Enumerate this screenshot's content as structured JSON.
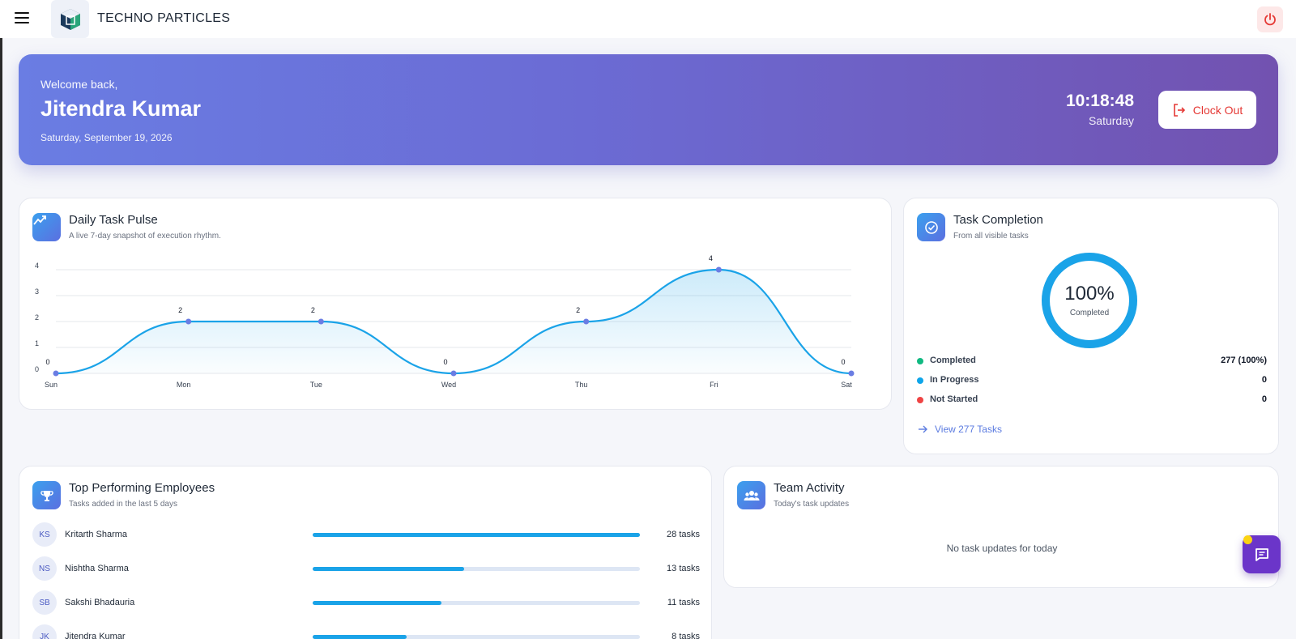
{
  "header": {
    "brand": "TECHNO PARTICLES",
    "menu_icon": "hamburger-icon",
    "logo_icon": "cube-logo",
    "power_icon": "power-icon"
  },
  "hero": {
    "welcome": "Welcome back,",
    "name": "Jitendra Kumar",
    "date": "Saturday, September 19, 2026",
    "time": "10:18:48",
    "day": "Saturday",
    "clock_out_label": "Clock Out"
  },
  "pulse": {
    "title": "Daily Task Pulse",
    "subtitle": "A live 7-day snapshot of execution rhythm.",
    "chart_data": {
      "type": "area",
      "categories": [
        "Sun",
        "Mon",
        "Tue",
        "Wed",
        "Thu",
        "Fri",
        "Sat"
      ],
      "values": [
        0,
        2,
        2,
        0,
        2,
        4,
        0
      ],
      "ylim": [
        0,
        4
      ],
      "yticks": [
        "0",
        "1",
        "2",
        "3",
        "4"
      ],
      "data_labels": [
        "0",
        "2",
        "2",
        "0",
        "2",
        "4",
        "0"
      ],
      "grid": true,
      "color": "#1aa3e8"
    }
  },
  "completion": {
    "title": "Task Completion",
    "subtitle": "From all visible tasks",
    "percent_label": "100%",
    "percent_value": 100,
    "percent_caption": "Completed",
    "legend": [
      {
        "label": "Completed",
        "value": "277 (100%)",
        "color": "#10b981"
      },
      {
        "label": "In Progress",
        "value": "0",
        "color": "#0ea5e9"
      },
      {
        "label": "Not Started",
        "value": "0",
        "color": "#ef4444"
      }
    ],
    "view_link": "View 277 Tasks"
  },
  "top_employees": {
    "title": "Top Performing Employees",
    "subtitle": "Tasks added in the last 5 days",
    "rows": [
      {
        "initials": "KS",
        "name": "Kritarth Sharma",
        "count": "28 tasks",
        "fraction": 1.0
      },
      {
        "initials": "NS",
        "name": "Nishtha Sharma",
        "count": "13 tasks",
        "fraction": 0.464
      },
      {
        "initials": "SB",
        "name": "Sakshi Bhadauria",
        "count": "11 tasks",
        "fraction": 0.393
      },
      {
        "initials": "JK",
        "name": "Jitendra Kumar",
        "count": "8 tasks",
        "fraction": 0.286
      }
    ]
  },
  "team": {
    "title": "Team Activity",
    "subtitle": "Today's task updates",
    "empty_text": "No task updates for today"
  },
  "chat": {
    "icon": "chat-icon"
  }
}
